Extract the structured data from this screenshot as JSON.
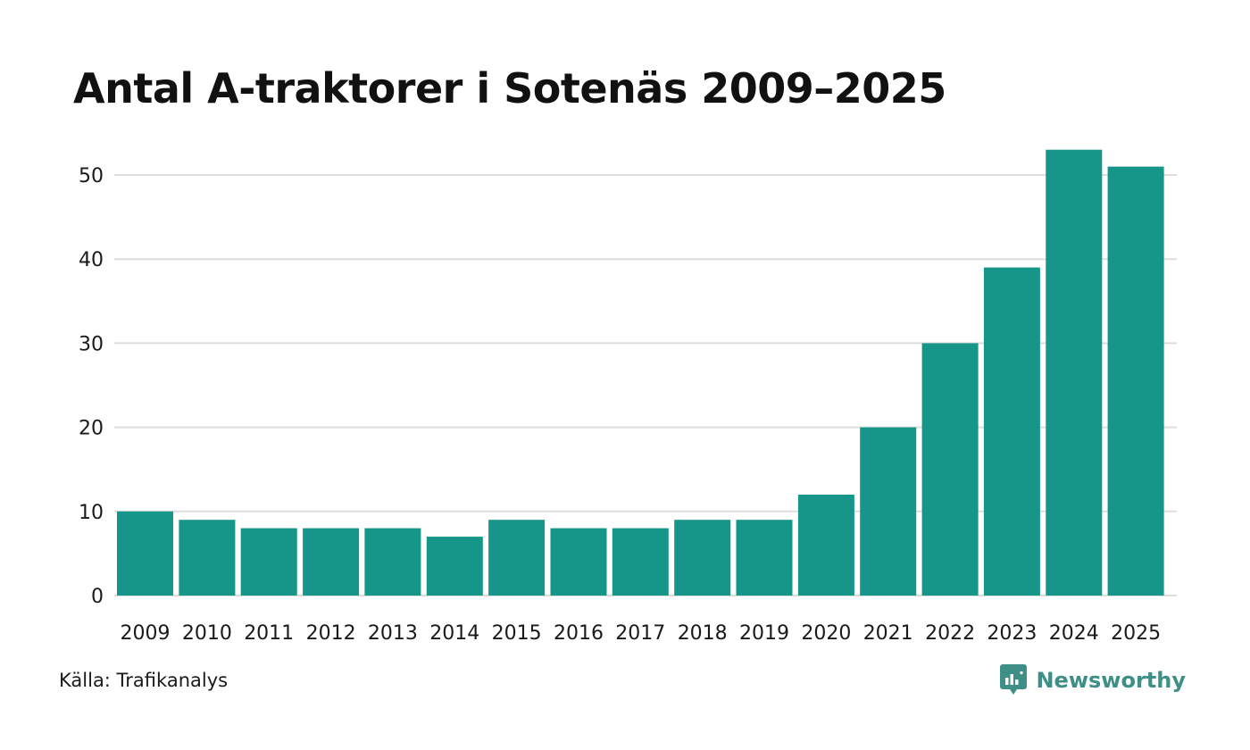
{
  "title": "Antal A-traktorer i Sotenäs 2009–2025",
  "source": "Källa: Trafikanalys",
  "brand": {
    "name": "Newsworthy",
    "icon": "newsworthy-logo-icon",
    "color": "#3d8f87"
  },
  "colors": {
    "bar": "#169688",
    "grid": "#dddddd"
  },
  "chart_data": {
    "type": "bar",
    "title": "Antal A-traktorer i Sotenäs 2009–2025",
    "xlabel": "",
    "ylabel": "",
    "categories": [
      "2009",
      "2010",
      "2011",
      "2012",
      "2013",
      "2014",
      "2015",
      "2016",
      "2017",
      "2018",
      "2019",
      "2020",
      "2021",
      "2022",
      "2023",
      "2024",
      "2025"
    ],
    "values": [
      10,
      9,
      8,
      8,
      8,
      7,
      9,
      8,
      8,
      9,
      9,
      12,
      20,
      30,
      39,
      53,
      51
    ],
    "yticks": [
      0,
      10,
      20,
      30,
      40,
      50
    ],
    "ylim": [
      0,
      55
    ],
    "grid": true,
    "legend": "none"
  }
}
